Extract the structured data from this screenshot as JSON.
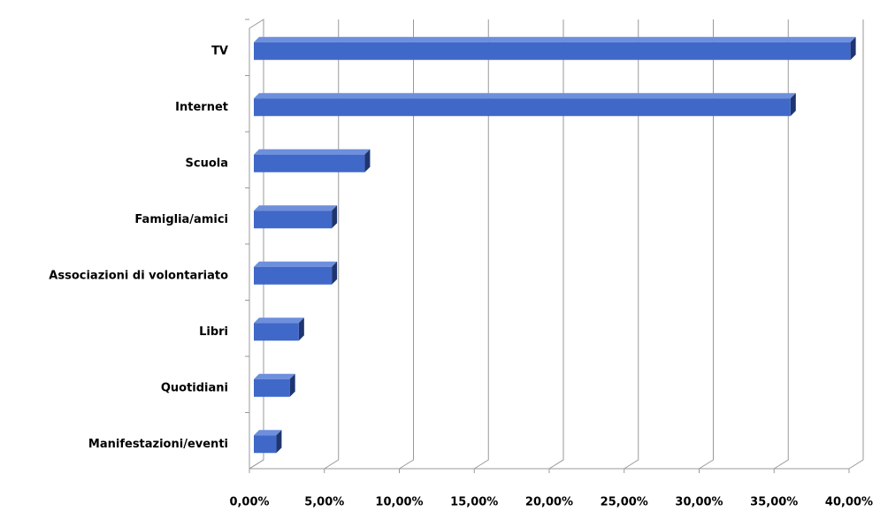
{
  "chart_data": {
    "type": "bar",
    "orientation": "horizontal",
    "categories": [
      "TV",
      "Internet",
      "Scuola",
      "Famiglia/amici",
      "Associazioni  di volontariato",
      "Libri",
      "Quotidiani",
      "Manifestazioni/eventi"
    ],
    "values": [
      39.8,
      35.8,
      7.4,
      5.2,
      5.2,
      3.0,
      2.4,
      1.5
    ],
    "color": "#3f68c8",
    "xlim": [
      0,
      40
    ],
    "xticks": [
      {
        "value": 0,
        "label": "0,00%"
      },
      {
        "value": 5,
        "label": "5,00%"
      },
      {
        "value": 10,
        "label": "10,00%"
      },
      {
        "value": 15,
        "label": "15,00%"
      },
      {
        "value": 20,
        "label": "20,00%"
      },
      {
        "value": 25,
        "label": "25,00%"
      },
      {
        "value": 30,
        "label": "30,00%"
      },
      {
        "value": 35,
        "label": "35,00%"
      },
      {
        "value": 40,
        "label": "40,00%"
      }
    ],
    "grid": true
  }
}
